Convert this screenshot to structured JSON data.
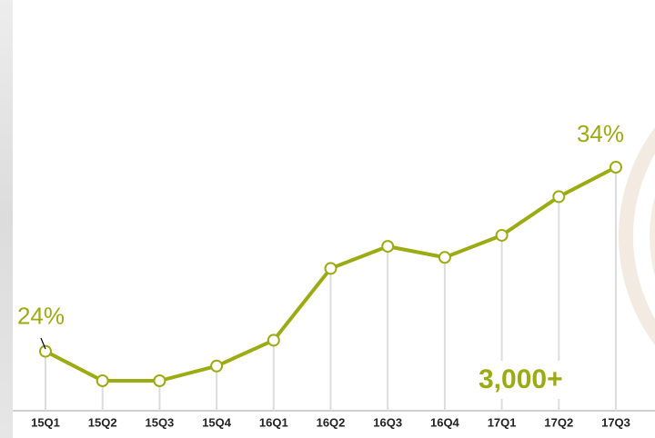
{
  "chart_data": {
    "type": "line",
    "categories": [
      "15Q1",
      "15Q2",
      "15Q3",
      "15Q4",
      "16Q1",
      "16Q2",
      "16Q3",
      "16Q4",
      "17Q1",
      "17Q2",
      "17Q3"
    ],
    "series": [
      {
        "color": "#9cab12",
        "values": [
          24,
          22.4,
          22.4,
          23.2,
          24.6,
          28.5,
          29.7,
          29.1,
          30.3,
          32.4,
          34
        ],
        "value_labels": [
          "24%",
          null,
          null,
          null,
          null,
          null,
          null,
          null,
          null,
          null,
          "34%"
        ]
      }
    ],
    "annotation": "3,000+"
  }
}
